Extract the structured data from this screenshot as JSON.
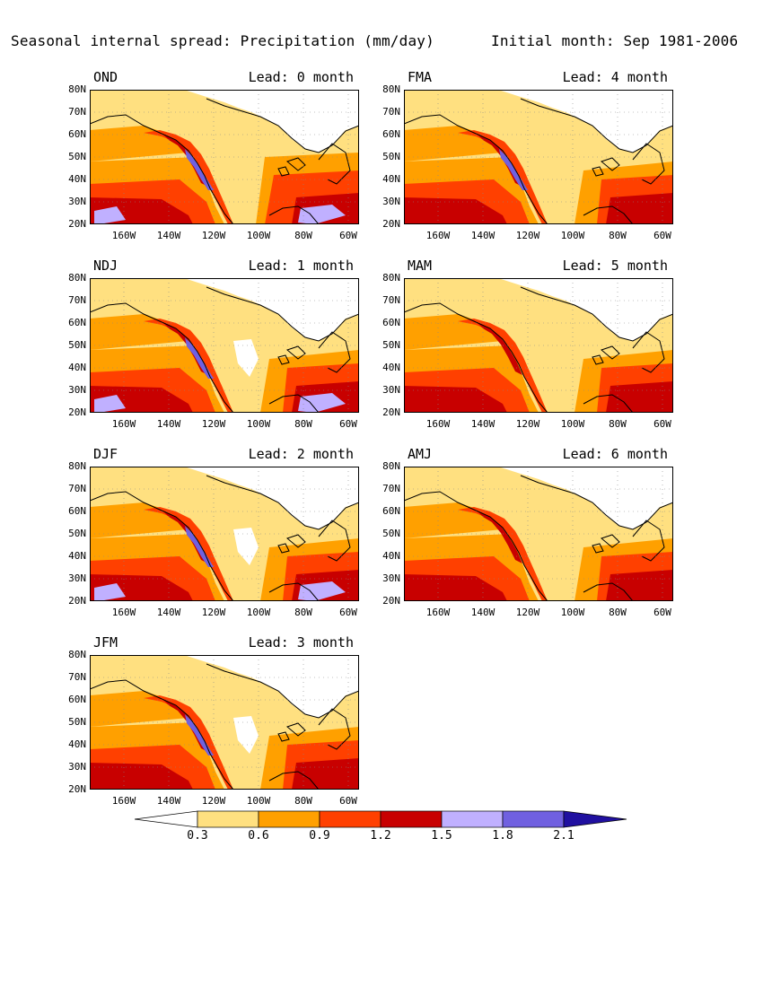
{
  "title_left": "Seasonal internal spread: Precipitation (mm/day)",
  "title_right": "Initial month: Sep 1981-2006",
  "lat_labels": [
    "80N",
    "70N",
    "60N",
    "50N",
    "40N",
    "30N",
    "20N"
  ],
  "lon_labels": [
    "160W",
    "140W",
    "120W",
    "100W",
    "80W",
    "60W"
  ],
  "panels": [
    {
      "season": "OND",
      "lead": "Lead: 0 month",
      "variant": "a"
    },
    {
      "season": "FMA",
      "lead": "Lead: 4 month",
      "variant": "e"
    },
    {
      "season": "NDJ",
      "lead": "Lead: 1 month",
      "variant": "b"
    },
    {
      "season": "MAM",
      "lead": "Lead: 5 month",
      "variant": "f"
    },
    {
      "season": "DJF",
      "lead": "Lead: 2 month",
      "variant": "c"
    },
    {
      "season": "AMJ",
      "lead": "Lead: 6 month",
      "variant": "g"
    },
    {
      "season": "JFM",
      "lead": "Lead: 3 month",
      "variant": "d"
    }
  ],
  "colorbar": {
    "labels": [
      "0.3",
      "0.6",
      "0.9",
      "1.2",
      "1.5",
      "1.8",
      "2.1"
    ],
    "colors": [
      "#ffffff",
      "#ffe080",
      "#ffa000",
      "#ff4000",
      "#c80000",
      "#c0b0ff",
      "#7060e0",
      "#2010a0"
    ]
  }
}
